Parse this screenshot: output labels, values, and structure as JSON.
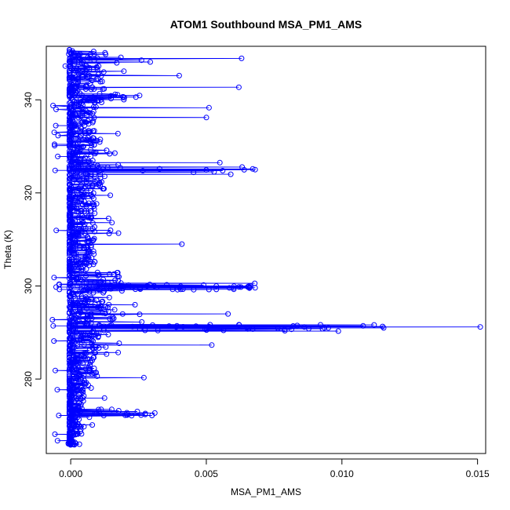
{
  "chart_data": {
    "type": "scatter",
    "title": "ATOM1 Southbound MSA_PM1_AMS",
    "xlabel": "MSA_PM1_AMS",
    "ylabel": "Theta (K)",
    "xlim": [
      -0.0009,
      0.0153
    ],
    "ylim": [
      264,
      351.5
    ],
    "xticks": [
      0.0,
      0.005,
      0.01,
      0.015
    ],
    "xtick_labels": [
      "0.000",
      "0.005",
      "0.010",
      "0.015"
    ],
    "yticks": [
      280,
      300,
      320,
      340
    ],
    "ytick_labels": [
      "280",
      "300",
      "320",
      "340"
    ],
    "series_color": "#0000ff",
    "marker": "open-circle",
    "connected": true,
    "theta_range": [
      266,
      350.5
    ],
    "spikes": [
      {
        "theta": 291.2,
        "x": 0.0151
      },
      {
        "theta": 291.3,
        "x": 0.0115
      },
      {
        "theta": 291.0,
        "x": 0.0095
      },
      {
        "theta": 291.4,
        "x": 0.0082
      },
      {
        "theta": 299.6,
        "x": 0.0068
      },
      {
        "theta": 299.8,
        "x": 0.0062
      },
      {
        "theta": 300.2,
        "x": 0.0049
      },
      {
        "theta": 348.9,
        "x": 0.0063
      },
      {
        "theta": 342.7,
        "x": 0.0062
      },
      {
        "theta": 325.0,
        "x": 0.0068
      },
      {
        "theta": 324.0,
        "x": 0.0059
      },
      {
        "theta": 326.5,
        "x": 0.0055
      },
      {
        "theta": 338.3,
        "x": 0.0051
      },
      {
        "theta": 336.2,
        "x": 0.005
      },
      {
        "theta": 294.0,
        "x": 0.0058
      },
      {
        "theta": 287.3,
        "x": 0.0052
      },
      {
        "theta": 272.7,
        "x": 0.0031
      },
      {
        "theta": 280.3,
        "x": 0.0027
      },
      {
        "theta": 309.0,
        "x": 0.0041
      },
      {
        "theta": 345.2,
        "x": 0.004
      }
    ]
  }
}
